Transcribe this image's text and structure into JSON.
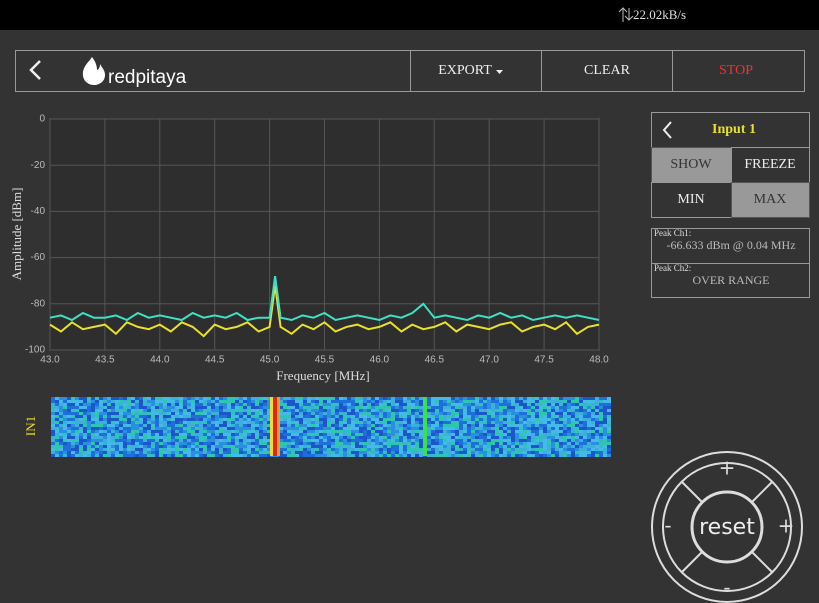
{
  "status": {
    "rate": "22.02kB/s"
  },
  "nav": {
    "logo": "redpitaya",
    "export": "EXPORT",
    "clear": "CLEAR",
    "stop": "STOP"
  },
  "chart_data": {
    "type": "line",
    "xlabel": "Frequency   [MHz]",
    "ylabel": "Amplitude  [dBm]",
    "xlim": [
      43,
      48
    ],
    "ylim": [
      -100,
      0
    ],
    "xticks": [
      {
        "value": 43,
        "label": "43.0"
      },
      {
        "value": 43.5,
        "label": "43.5"
      },
      {
        "value": 44,
        "label": "44.0"
      },
      {
        "value": 44.5,
        "label": "44.5"
      },
      {
        "value": 45,
        "label": "45.0"
      },
      {
        "value": 45.5,
        "label": "45.5"
      },
      {
        "value": 46,
        "label": "46.0"
      },
      {
        "value": 46.5,
        "label": "46.5"
      },
      {
        "value": 47,
        "label": "47.0"
      },
      {
        "value": 47.5,
        "label": "47.5"
      },
      {
        "value": 48,
        "label": "48.0"
      }
    ],
    "yticks": [
      0,
      -20,
      -40,
      -60,
      -80,
      -100
    ],
    "grid": true,
    "x": [
      43.0,
      43.1,
      43.2,
      43.3,
      43.4,
      43.5,
      43.6,
      43.7,
      43.8,
      43.9,
      44.0,
      44.1,
      44.2,
      44.3,
      44.4,
      44.5,
      44.6,
      44.7,
      44.8,
      44.9,
      45.0,
      45.05,
      45.1,
      45.2,
      45.3,
      45.4,
      45.5,
      45.6,
      45.7,
      45.8,
      45.9,
      46.0,
      46.1,
      46.2,
      46.3,
      46.4,
      46.5,
      46.6,
      46.7,
      46.8,
      46.9,
      47.0,
      47.1,
      47.2,
      47.3,
      47.4,
      47.5,
      47.6,
      47.7,
      47.8,
      47.9,
      48.0
    ],
    "series": [
      {
        "color": "#3fe0c5",
        "values": [
          -86,
          -85,
          -87,
          -84,
          -86,
          -86,
          -85,
          -87,
          -84,
          -86,
          -85,
          -86,
          -87,
          -84,
          -86,
          -85,
          -86,
          -84,
          -87,
          -86,
          -86,
          -68,
          -86,
          -87,
          -85,
          -86,
          -84,
          -87,
          -86,
          -85,
          -86,
          -87,
          -85,
          -86,
          -84,
          -80,
          -86,
          -85,
          -86,
          -87,
          -85,
          -86,
          -84,
          -86,
          -85,
          -87,
          -86,
          -85,
          -86,
          -85,
          -86,
          -87
        ]
      },
      {
        "color": "#e8e02a",
        "values": [
          -89,
          -92,
          -88,
          -91,
          -90,
          -89,
          -93,
          -88,
          -90,
          -91,
          -89,
          -92,
          -88,
          -90,
          -94,
          -89,
          -91,
          -90,
          -88,
          -92,
          -90,
          -72,
          -90,
          -93,
          -89,
          -91,
          -88,
          -92,
          -90,
          -89,
          -91,
          -90,
          -88,
          -92,
          -89,
          -91,
          -90,
          -88,
          -92,
          -89,
          -90,
          -91,
          -89,
          -88,
          -92,
          -90,
          -89,
          -91,
          -88,
          -93,
          -90,
          -89
        ]
      }
    ]
  },
  "waterfall": {
    "label": "IN1"
  },
  "panel": {
    "input": "Input 1",
    "show": "SHOW",
    "freeze": "FREEZE",
    "min": "MIN",
    "max": "MAX",
    "peak1_label": "Peak  Ch1:",
    "peak1_value": "-66.633  dBm @ 0.04  MHz",
    "peak2_label": "Peak  Ch2:",
    "peak2_value": "OVER RANGE"
  },
  "controls": {
    "up": "+",
    "left": "-",
    "reset": "reset",
    "right": "+",
    "down": "-"
  }
}
